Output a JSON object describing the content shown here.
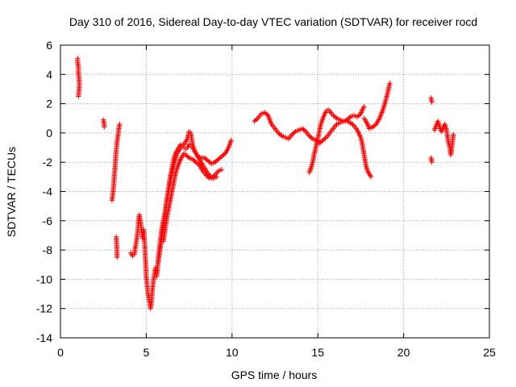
{
  "chart_data": {
    "type": "scatter",
    "title": "Day 310 of 2016, Sidereal Day-to-day VTEC variation (SDTVAR) for receiver rocd",
    "xlabel": "GPS time / hours",
    "ylabel": "SDTVAR / TECUs",
    "xlim": [
      0,
      25
    ],
    "ylim": [
      -14,
      6
    ],
    "xticks": [
      0,
      5,
      10,
      15,
      20,
      25
    ],
    "yticks": [
      -14,
      -12,
      -10,
      -8,
      -6,
      -4,
      -2,
      0,
      2,
      4,
      6
    ],
    "grid": true,
    "legend": "none",
    "marker": "+",
    "color": "#ff0000",
    "tracks": [
      [
        [
          1.0,
          5.1
        ],
        [
          1.0,
          4.8
        ],
        [
          1.05,
          4.5
        ],
        [
          1.05,
          4.1
        ],
        [
          1.1,
          3.4
        ],
        [
          1.1,
          3.2
        ],
        [
          1.05,
          2.5
        ]
      ],
      [
        [
          2.5,
          0.9
        ],
        [
          2.55,
          0.6
        ],
        [
          2.55,
          0.4
        ]
      ],
      [
        [
          3.0,
          -4.6
        ],
        [
          3.05,
          -4.2
        ],
        [
          3.1,
          -3.6
        ],
        [
          3.15,
          -2.8
        ],
        [
          3.2,
          -2.0
        ],
        [
          3.25,
          -1.2
        ],
        [
          3.3,
          -0.6
        ],
        [
          3.35,
          -0.2
        ],
        [
          3.4,
          0.3
        ],
        [
          3.45,
          0.6
        ]
      ],
      [
        [
          3.25,
          -7.1
        ],
        [
          3.3,
          -8.1
        ],
        [
          3.3,
          -8.5
        ]
      ],
      [
        [
          4.1,
          -8.2
        ],
        [
          4.2,
          -8.4
        ],
        [
          4.3,
          -8.3
        ],
        [
          4.4,
          -7.6
        ],
        [
          4.5,
          -6.8
        ],
        [
          4.55,
          -6.0
        ],
        [
          4.6,
          -5.6
        ],
        [
          4.7,
          -6.4
        ],
        [
          4.8,
          -7.2
        ],
        [
          4.85,
          -6.6
        ],
        [
          4.9,
          -7.4
        ],
        [
          4.95,
          -8.5
        ],
        [
          5.0,
          -9.8
        ],
        [
          5.05,
          -10.4
        ],
        [
          5.1,
          -11.0
        ],
        [
          5.2,
          -11.6
        ],
        [
          5.25,
          -12.0
        ],
        [
          5.3,
          -11.6
        ],
        [
          5.35,
          -10.8
        ],
        [
          5.45,
          -9.8
        ],
        [
          5.55,
          -9.2
        ],
        [
          5.6,
          -9.8
        ],
        [
          5.65,
          -9.4
        ],
        [
          5.7,
          -8.6
        ],
        [
          5.8,
          -7.6
        ],
        [
          5.9,
          -6.6
        ],
        [
          6.0,
          -6.0
        ],
        [
          6.1,
          -5.4
        ],
        [
          6.2,
          -4.6
        ],
        [
          6.35,
          -3.6
        ],
        [
          6.5,
          -2.8
        ],
        [
          6.65,
          -2.0
        ],
        [
          6.8,
          -1.4
        ],
        [
          6.95,
          -1.1
        ],
        [
          7.1,
          -0.9
        ],
        [
          7.25,
          -0.7
        ],
        [
          7.4,
          -0.4
        ],
        [
          7.5,
          0.1
        ],
        [
          7.6,
          0.0
        ],
        [
          7.7,
          -0.8
        ],
        [
          7.85,
          -1.3
        ],
        [
          8.0,
          -1.6
        ],
        [
          8.2,
          -1.7
        ],
        [
          8.4,
          -1.7
        ],
        [
          8.6,
          -1.9
        ],
        [
          8.8,
          -2.1
        ],
        [
          9.0,
          -2.0
        ],
        [
          9.2,
          -1.8
        ],
        [
          9.4,
          -1.6
        ],
        [
          9.6,
          -1.4
        ],
        [
          9.8,
          -1.0
        ],
        [
          9.95,
          -0.5
        ]
      ],
      [
        [
          5.7,
          -8.8
        ],
        [
          5.8,
          -8.0
        ],
        [
          5.9,
          -7.2
        ],
        [
          6.0,
          -6.4
        ],
        [
          6.1,
          -5.6
        ],
        [
          6.2,
          -4.6
        ],
        [
          6.3,
          -3.8
        ],
        [
          6.4,
          -3.0
        ],
        [
          6.5,
          -2.4
        ],
        [
          6.6,
          -1.8
        ],
        [
          6.7,
          -1.4
        ],
        [
          6.8,
          -1.2
        ],
        [
          6.9,
          -1.0
        ],
        [
          7.0,
          -0.8
        ],
        [
          7.1,
          -0.9
        ],
        [
          7.2,
          -1.0
        ],
        [
          7.3,
          -1.1
        ],
        [
          7.4,
          -1.0
        ],
        [
          7.5,
          -0.8
        ],
        [
          7.6,
          -0.9
        ],
        [
          7.7,
          -1.0
        ],
        [
          7.8,
          -1.2
        ],
        [
          7.9,
          -1.4
        ],
        [
          8.0,
          -1.6
        ],
        [
          8.2,
          -2.0
        ],
        [
          8.4,
          -2.4
        ],
        [
          8.6,
          -2.8
        ],
        [
          8.8,
          -3.0
        ],
        [
          9.0,
          -2.9
        ],
        [
          9.2,
          -2.6
        ],
        [
          9.4,
          -2.5
        ]
      ],
      [
        [
          6.0,
          -7.4
        ],
        [
          6.1,
          -6.6
        ],
        [
          6.2,
          -5.8
        ],
        [
          6.3,
          -5.2
        ],
        [
          6.4,
          -4.6
        ],
        [
          6.5,
          -4.0
        ],
        [
          6.6,
          -3.4
        ],
        [
          6.7,
          -2.8
        ],
        [
          6.8,
          -2.4
        ],
        [
          6.9,
          -2.1
        ],
        [
          7.0,
          -1.8
        ],
        [
          7.1,
          -1.6
        ],
        [
          7.2,
          -1.4
        ],
        [
          7.3,
          -1.5
        ],
        [
          7.5,
          -1.7
        ],
        [
          7.7,
          -1.8
        ],
        [
          7.9,
          -2.0
        ],
        [
          8.1,
          -2.2
        ],
        [
          8.3,
          -2.6
        ],
        [
          8.5,
          -2.9
        ],
        [
          8.7,
          -3.1
        ],
        [
          8.9,
          -3.1
        ],
        [
          9.1,
          -3.0
        ]
      ],
      [
        [
          11.3,
          0.8
        ],
        [
          11.5,
          1.0
        ],
        [
          11.7,
          1.3
        ],
        [
          11.9,
          1.4
        ],
        [
          12.1,
          1.2
        ],
        [
          12.3,
          0.6
        ],
        [
          12.5,
          0.3
        ],
        [
          12.7,
          0.0
        ],
        [
          12.9,
          -0.2
        ],
        [
          13.1,
          -0.3
        ],
        [
          13.3,
          -0.4
        ],
        [
          13.5,
          -0.1
        ],
        [
          13.7,
          0.1
        ],
        [
          13.9,
          0.2
        ],
        [
          14.1,
          0.3
        ],
        [
          14.3,
          0.1
        ],
        [
          14.5,
          -0.2
        ],
        [
          14.7,
          -0.4
        ],
        [
          14.9,
          -0.5
        ],
        [
          15.1,
          -0.7
        ],
        [
          15.3,
          -0.5
        ],
        [
          15.5,
          -0.3
        ],
        [
          15.7,
          0.0
        ],
        [
          15.9,
          0.3
        ],
        [
          16.1,
          0.6
        ],
        [
          16.3,
          0.7
        ],
        [
          16.5,
          0.8
        ],
        [
          16.7,
          0.9
        ],
        [
          16.9,
          1.1
        ],
        [
          17.1,
          1.2
        ],
        [
          17.3,
          1.1
        ],
        [
          17.5,
          1.3
        ],
        [
          17.6,
          1.6
        ],
        [
          17.7,
          1.8
        ]
      ],
      [
        [
          14.5,
          -2.7
        ],
        [
          14.6,
          -2.4
        ],
        [
          14.7,
          -2.0
        ],
        [
          14.8,
          -1.4
        ],
        [
          14.9,
          -0.9
        ],
        [
          15.0,
          -0.4
        ],
        [
          15.1,
          0.2
        ],
        [
          15.2,
          0.7
        ],
        [
          15.3,
          1.0
        ],
        [
          15.4,
          1.3
        ],
        [
          15.5,
          1.5
        ],
        [
          15.6,
          1.6
        ],
        [
          15.7,
          1.5
        ],
        [
          15.8,
          1.3
        ],
        [
          15.9,
          1.2
        ],
        [
          16.1,
          1.0
        ],
        [
          16.3,
          0.9
        ],
        [
          16.5,
          0.8
        ],
        [
          16.7,
          0.8
        ],
        [
          16.9,
          0.7
        ],
        [
          17.1,
          0.5
        ],
        [
          17.3,
          0.2
        ],
        [
          17.5,
          -0.3
        ],
        [
          17.6,
          -0.8
        ],
        [
          17.7,
          -1.5
        ],
        [
          17.8,
          -2.2
        ],
        [
          17.9,
          -2.6
        ],
        [
          18.0,
          -2.8
        ],
        [
          18.1,
          -3.0
        ]
      ],
      [
        [
          17.7,
          1.0
        ],
        [
          17.9,
          0.6
        ],
        [
          18.0,
          0.3
        ],
        [
          18.2,
          0.4
        ],
        [
          18.4,
          0.6
        ],
        [
          18.6,
          1.0
        ],
        [
          18.8,
          1.6
        ],
        [
          19.0,
          2.4
        ],
        [
          19.1,
          2.9
        ],
        [
          19.2,
          3.4
        ]
      ],
      [
        [
          21.6,
          2.4
        ],
        [
          21.65,
          2.1
        ],
        [
          21.6,
          -1.7
        ],
        [
          21.65,
          -2.0
        ]
      ],
      [
        [
          21.8,
          0.2
        ],
        [
          21.9,
          0.5
        ],
        [
          22.0,
          0.8
        ],
        [
          22.1,
          0.4
        ],
        [
          22.2,
          0.1
        ],
        [
          22.3,
          0.3
        ],
        [
          22.4,
          0.6
        ],
        [
          22.5,
          0.2
        ],
        [
          22.6,
          -0.6
        ],
        [
          22.7,
          -1.0
        ],
        [
          22.75,
          -1.5
        ],
        [
          22.8,
          -1.1
        ],
        [
          22.85,
          -0.6
        ],
        [
          22.9,
          -0.1
        ]
      ]
    ]
  }
}
